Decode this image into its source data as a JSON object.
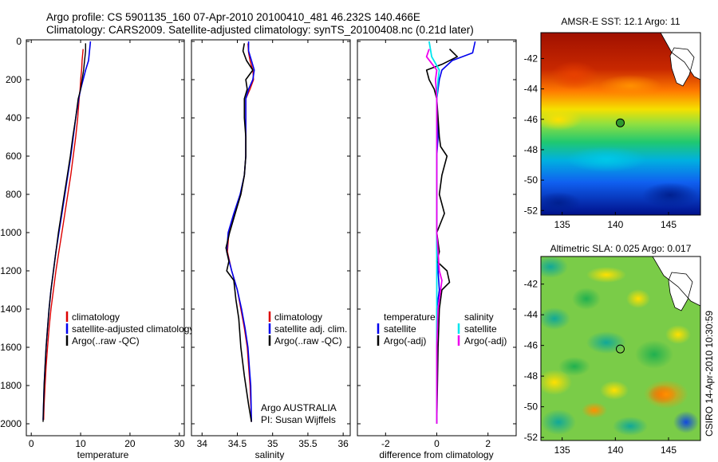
{
  "figure": {
    "title_line1": "Argo profile: CS 5901135_160 07-Apr-2010 20100410_481 46.232S 140.466E",
    "title_line2": "Climatology: CARS2009. Satellite-adjusted climatology: synTS_20100408.nc (0.21d later)",
    "credit_line1": "Argo AUSTRALIA",
    "credit_line2": "PI: Susan Wijffels",
    "timestamp": "CSIRO 14-Apr-2010 10:30:59"
  },
  "colors": {
    "climatology": "#dd0000",
    "satellite": "#0000ee",
    "argo": "#000000",
    "salinity_satellite": "#00e5ee",
    "salinity_argo": "#ee00ee"
  },
  "chart_data": [
    {
      "type": "line",
      "id": "temperature",
      "xlabel": "temperature",
      "ylabel": "",
      "xlim": [
        -1,
        31
      ],
      "ylim": [
        2050,
        0
      ],
      "xticks": [
        0,
        10,
        20,
        30
      ],
      "yticks": [
        0,
        200,
        400,
        600,
        800,
        1000,
        1200,
        1400,
        1600,
        1800,
        2000
      ],
      "legend": [
        {
          "label": "climatology",
          "series": "climatology"
        },
        {
          "label": "satellite-adjusted climatology",
          "series": "satellite"
        },
        {
          "label": "Argo(..raw -QC)",
          "series": "argo"
        }
      ],
      "series": [
        {
          "name": "climatology",
          "color_key": "climatology",
          "width": 1.4,
          "x": [
            10.5,
            10.3,
            10.2,
            10.0,
            9.9,
            9.7,
            9.4,
            9.0,
            8.5,
            8.0,
            7.4,
            6.8,
            6.2,
            5.6,
            5.0,
            4.5,
            4.0,
            3.6,
            3.3,
            3.0,
            2.8,
            2.6,
            2.5
          ],
          "y": [
            40,
            100,
            150,
            200,
            250,
            300,
            400,
            500,
            600,
            700,
            800,
            900,
            1000,
            1100,
            1200,
            1300,
            1400,
            1500,
            1600,
            1700,
            1800,
            1900,
            1980
          ]
        },
        {
          "name": "satellite",
          "color_key": "satellite",
          "width": 1.6,
          "x": [
            12.0,
            11.8,
            11.6,
            11.0,
            10.5,
            10.0,
            9.6,
            9.0,
            8.5,
            8.0,
            7.4,
            6.8,
            6.2,
            5.6,
            5.0,
            4.5,
            4.0,
            3.6,
            3.3,
            3.0,
            2.8,
            2.6,
            2.4
          ],
          "y": [
            0,
            50,
            100,
            150,
            200,
            250,
            300,
            400,
            500,
            600,
            700,
            800,
            900,
            1000,
            1100,
            1200,
            1300,
            1400,
            1500,
            1600,
            1700,
            1800,
            1980
          ]
        },
        {
          "name": "argo",
          "color_key": "argo",
          "width": 1.4,
          "x": [
            11.0,
            11.0,
            10.8,
            10.6,
            10.3,
            10.0,
            9.5,
            9.0,
            8.4,
            7.9,
            7.3,
            6.7,
            6.1,
            5.5,
            5.0,
            4.5,
            4.0,
            3.6,
            3.3,
            3.0,
            2.8,
            2.6,
            2.4
          ],
          "y": [
            10,
            50,
            100,
            150,
            200,
            250,
            300,
            400,
            500,
            600,
            700,
            800,
            900,
            1000,
            1100,
            1200,
            1300,
            1400,
            1500,
            1600,
            1700,
            1800,
            1990
          ]
        }
      ]
    },
    {
      "type": "line",
      "id": "salinity",
      "xlabel": "salinity",
      "ylabel": "",
      "xlim": [
        33.85,
        36.1
      ],
      "ylim": [
        2050,
        0
      ],
      "xticks": [
        34,
        34.5,
        35,
        35.5,
        36
      ],
      "yticks": [
        0,
        200,
        400,
        600,
        800,
        1000,
        1200,
        1400,
        1600,
        1800,
        2000
      ],
      "legend": [
        {
          "label": "climatology",
          "series": "climatology"
        },
        {
          "label": "satellite adj. clim.",
          "series": "satellite"
        },
        {
          "label": "Argo(..raw -QC)",
          "series": "argo"
        }
      ],
      "series": [
        {
          "name": "climatology",
          "color_key": "climatology",
          "width": 1.4,
          "x": [
            34.65,
            34.66,
            34.68,
            34.72,
            34.73,
            34.68,
            34.62,
            34.62,
            34.62,
            34.62,
            34.6,
            34.55,
            34.46,
            34.38,
            34.36,
            34.42,
            34.5,
            34.55,
            34.6,
            34.64,
            34.66,
            34.68,
            34.7
          ],
          "y": [
            10,
            60,
            100,
            150,
            200,
            250,
            300,
            400,
            500,
            600,
            700,
            800,
            900,
            1000,
            1100,
            1200,
            1300,
            1400,
            1500,
            1600,
            1700,
            1800,
            1990
          ]
        },
        {
          "name": "satellite",
          "color_key": "satellite",
          "width": 1.6,
          "x": [
            34.66,
            34.66,
            34.7,
            34.74,
            34.72,
            34.66,
            34.62,
            34.62,
            34.62,
            34.62,
            34.6,
            34.54,
            34.45,
            34.37,
            34.35,
            34.42,
            34.5,
            34.56,
            34.61,
            34.65,
            34.67,
            34.69,
            34.7
          ],
          "y": [
            0,
            50,
            100,
            150,
            200,
            250,
            300,
            400,
            500,
            600,
            700,
            800,
            900,
            1000,
            1100,
            1200,
            1300,
            1400,
            1500,
            1600,
            1700,
            1800,
            1990
          ]
        },
        {
          "name": "argo",
          "color_key": "argo",
          "width": 1.6,
          "x": [
            34.6,
            34.58,
            34.63,
            34.72,
            34.62,
            34.64,
            34.6,
            34.6,
            34.62,
            34.62,
            34.6,
            34.55,
            34.47,
            34.39,
            34.34,
            34.38,
            34.35,
            34.45,
            34.48,
            34.52,
            34.55,
            34.6,
            34.66,
            34.7
          ],
          "y": [
            10,
            50,
            100,
            150,
            200,
            250,
            300,
            400,
            500,
            600,
            700,
            800,
            900,
            1000,
            1080,
            1150,
            1200,
            1250,
            1350,
            1450,
            1600,
            1750,
            1900,
            1990
          ]
        }
      ]
    },
    {
      "type": "line",
      "id": "difference",
      "xlabel": "difference from climatology",
      "ylabel": "",
      "xlim": [
        -3.1,
        3.1
      ],
      "ylim": [
        2050,
        0
      ],
      "xticks": [
        -2,
        0,
        2
      ],
      "yticks": [
        0,
        200,
        400,
        600,
        800,
        1000,
        1200,
        1400,
        1600,
        1800,
        2000
      ],
      "legend_headers": [
        "temperature",
        "salinity"
      ],
      "legend": [
        {
          "label": "satellite",
          "series": "temp_satellite",
          "column": 0
        },
        {
          "label": "Argo(-adj)",
          "series": "temp_argo",
          "column": 0
        },
        {
          "label": "satellite",
          "series": "sal_satellite",
          "column": 1
        },
        {
          "label": "Argo(-adj)",
          "series": "sal_argo",
          "column": 1
        }
      ],
      "series": [
        {
          "name": "temp_satellite",
          "color_key": "satellite",
          "width": 1.6,
          "x": [
            1.5,
            1.4,
            0.6,
            0.2,
            0.1,
            0.05,
            0.0,
            0.05,
            0.0,
            0.0,
            0.0,
            0.0,
            0.0,
            0.0,
            0.05,
            0.1,
            0.0,
            0.0,
            0.0,
            0.0
          ],
          "y": [
            0,
            60,
            100,
            150,
            200,
            250,
            300,
            500,
            600,
            700,
            800,
            900,
            1000,
            1100,
            1200,
            1300,
            1400,
            1600,
            1800,
            2000
          ]
        },
        {
          "name": "temp_argo",
          "color_key": "argo",
          "width": 1.6,
          "x": [
            0.5,
            0.8,
            0.2,
            -0.4,
            -0.3,
            -0.1,
            0.0,
            0.1,
            0.15,
            0.4,
            0.2,
            0.1,
            0.3,
            0.0,
            0.1,
            0.0,
            0.4,
            0.5,
            0.2,
            0.1,
            0.05,
            0.0
          ],
          "y": [
            40,
            80,
            120,
            150,
            200,
            250,
            300,
            500,
            550,
            600,
            700,
            800,
            900,
            1000,
            1100,
            1150,
            1200,
            1260,
            1300,
            1400,
            1600,
            2000
          ]
        },
        {
          "name": "sal_satellite",
          "color_key": "salinity_satellite",
          "width": 1.8,
          "x": [
            -0.3,
            -0.2,
            0.1,
            0.05,
            0.0,
            0.0,
            0.0,
            0.0,
            0.0,
            0.0,
            0.0,
            0.0,
            0.0,
            0.0
          ],
          "y": [
            0,
            80,
            150,
            200,
            300,
            400,
            600,
            800,
            1000,
            1200,
            1400,
            1600,
            1800,
            2000
          ]
        },
        {
          "name": "sal_argo",
          "color_key": "salinity_argo",
          "width": 1.8,
          "x": [
            -0.3,
            -0.4,
            0.0,
            -0.05,
            0.0,
            0.0,
            0.0,
            0.0,
            0.1,
            0.2,
            0.15,
            0.05,
            0.0,
            0.0
          ],
          "y": [
            40,
            80,
            150,
            200,
            300,
            500,
            700,
            1000,
            1200,
            1250,
            1300,
            1400,
            1600,
            2000
          ]
        }
      ]
    },
    {
      "type": "heatmap",
      "id": "sst_map",
      "title": "AMSR-E SST: 12.1 Argo: 11",
      "xlim": [
        133,
        148
      ],
      "ylim": [
        -52.3,
        -40.3
      ],
      "xticks": [
        135,
        140,
        145
      ],
      "yticks": [
        -42,
        -44,
        -46,
        -48,
        -50,
        -52
      ],
      "marker": {
        "lon": 140.466,
        "lat": -46.232
      },
      "colormap": "jet"
    },
    {
      "type": "heatmap",
      "id": "sla_map",
      "title": "Altimetric SLA: 0.025 Argo: 0.017",
      "xlim": [
        133,
        148
      ],
      "ylim": [
        -52.2,
        -40.2
      ],
      "xticks": [
        135,
        140,
        145
      ],
      "yticks": [
        -42,
        -44,
        -46,
        -48,
        -50,
        -52
      ],
      "marker": {
        "lon": 140.466,
        "lat": -46.232
      },
      "colormap": "jet"
    }
  ]
}
